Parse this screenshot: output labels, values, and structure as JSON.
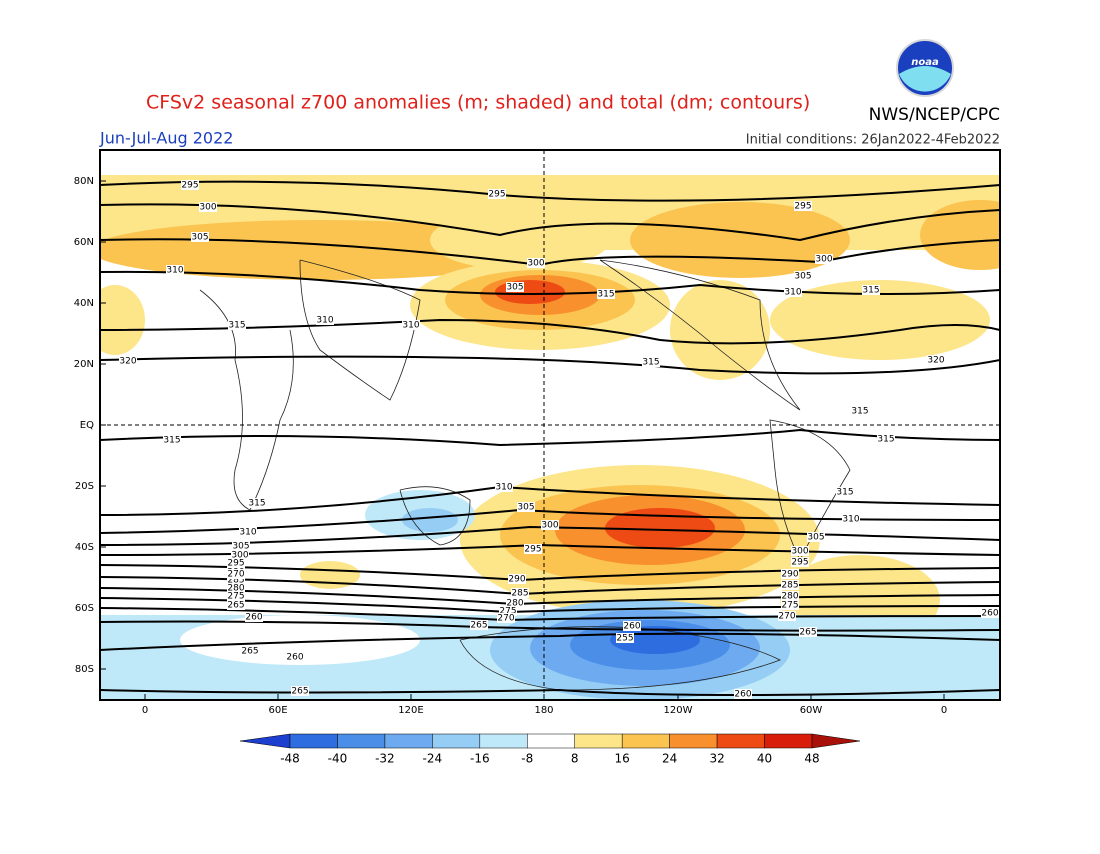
{
  "header": {
    "title": "CFSv2 seasonal z700 anomalies (m; shaded) and total (dm; contours)",
    "agency": "NWS/NCEP/CPC",
    "period": "Jun-Jul-Aug 2022",
    "initial_conditions": "Initial conditions: 26Jan2022-4Feb2022"
  },
  "map": {
    "lat_labels": [
      "80N",
      "60N",
      "40N",
      "20N",
      "EQ",
      "20S",
      "40S",
      "60S",
      "80S"
    ],
    "lon_labels": [
      "0",
      "60E",
      "120E",
      "180",
      "120W",
      "60W",
      "0"
    ],
    "contour_labels": [
      "295",
      "295",
      "295",
      "300",
      "305",
      "310",
      "300",
      "305",
      "315",
      "305",
      "300",
      "310",
      "315",
      "315",
      "310",
      "310",
      "320",
      "315",
      "320",
      "315",
      "315",
      "315",
      "315",
      "310",
      "315",
      "305",
      "310",
      "310",
      "300",
      "305",
      "305",
      "300",
      "295",
      "300",
      "295",
      "290",
      "290",
      "285",
      "285",
      "280",
      "280",
      "275",
      "275",
      "270",
      "270",
      "265",
      "260",
      "265",
      "265",
      "260",
      "255",
      "260",
      "265",
      "260",
      "265",
      "260",
      "295",
      "290",
      "285",
      "280",
      "275",
      "270"
    ]
  },
  "colorbar": {
    "ticks": [
      -48,
      -40,
      -32,
      -24,
      -16,
      -8,
      8,
      16,
      24,
      32,
      40,
      48
    ],
    "colors": [
      "#1c3fd0",
      "#2d6de0",
      "#4a8ee8",
      "#6eaaf0",
      "#96cdf5",
      "#bfe9f8",
      "#ffffff",
      "#fde58a",
      "#fbc450",
      "#f8902e",
      "#ee4a14",
      "#d81e0a",
      "#a8100a"
    ]
  }
}
